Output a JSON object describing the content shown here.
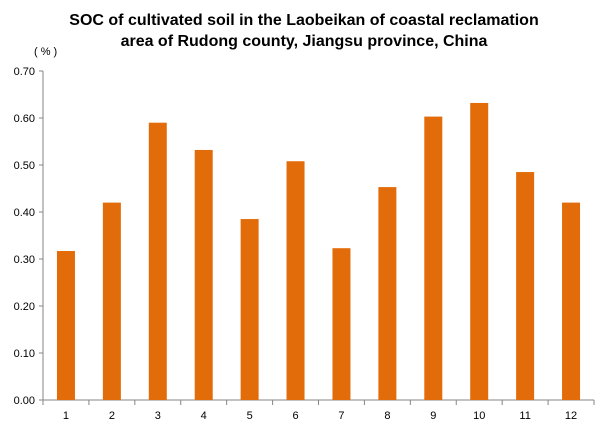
{
  "chart_data": {
    "type": "bar",
    "title_lines": [
      "SOC of cultivated soil in the Laobeikan of coastal reclamation",
      "area of Rudong county, Jiangsu province, China"
    ],
    "ylabel": "( % )",
    "categories": [
      "1",
      "2",
      "3",
      "4",
      "5",
      "6",
      "7",
      "8",
      "9",
      "10",
      "11",
      "12"
    ],
    "values": [
      0.317,
      0.42,
      0.59,
      0.532,
      0.385,
      0.508,
      0.323,
      0.453,
      0.603,
      0.632,
      0.485,
      0.42
    ],
    "ylim": [
      0,
      0.7
    ],
    "yticks": [
      "0.00",
      "0.10",
      "0.20",
      "0.30",
      "0.40",
      "0.50",
      "0.60",
      "0.70"
    ],
    "bar_color": "#E36C0A",
    "grid": false,
    "legend": "none"
  }
}
